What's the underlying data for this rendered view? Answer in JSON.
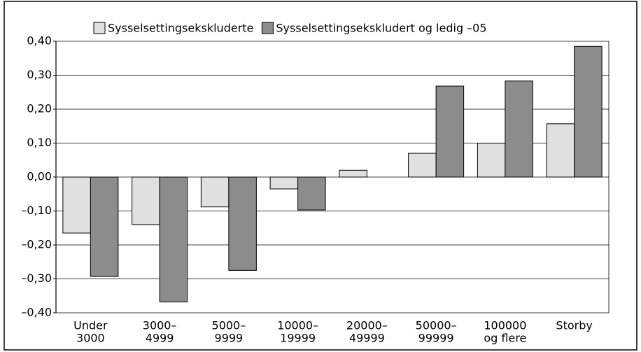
{
  "chart_data": {
    "type": "bar",
    "categories": [
      [
        "Under",
        "3000"
      ],
      [
        "3000–",
        "4999"
      ],
      [
        "5000–",
        "9999"
      ],
      [
        "10000–",
        "19999"
      ],
      [
        "20000–",
        "49999"
      ],
      [
        "50000–",
        "99999"
      ],
      [
        "100000",
        "og flere"
      ],
      [
        "Storby"
      ]
    ],
    "series": [
      {
        "name": "Sysselsettingsekskluderte",
        "color": "#e0e0e0",
        "values": [
          -0.165,
          -0.14,
          -0.088,
          -0.035,
          0.02,
          0.07,
          0.1,
          0.157
        ]
      },
      {
        "name": "Sysselsettingsekskludert og ledig –05",
        "color": "#8c8c8c",
        "values": [
          -0.293,
          -0.368,
          -0.275,
          -0.097,
          null,
          0.268,
          0.283,
          0.385
        ]
      }
    ],
    "ylim": [
      -0.4,
      0.4
    ],
    "yticks": [
      {
        "value": -0.4,
        "label": "–0,40"
      },
      {
        "value": -0.3,
        "label": "–0,30"
      },
      {
        "value": -0.2,
        "label": "–0,20"
      },
      {
        "value": -0.1,
        "label": "–0,10"
      },
      {
        "value": 0,
        "label": "0,00"
      },
      {
        "value": 0.1,
        "label": "0,10"
      },
      {
        "value": 0.2,
        "label": "0,20"
      },
      {
        "value": 0.3,
        "label": "0,30"
      },
      {
        "value": 0.4,
        "label": "0,40"
      }
    ],
    "grid": true,
    "legend": "top"
  }
}
